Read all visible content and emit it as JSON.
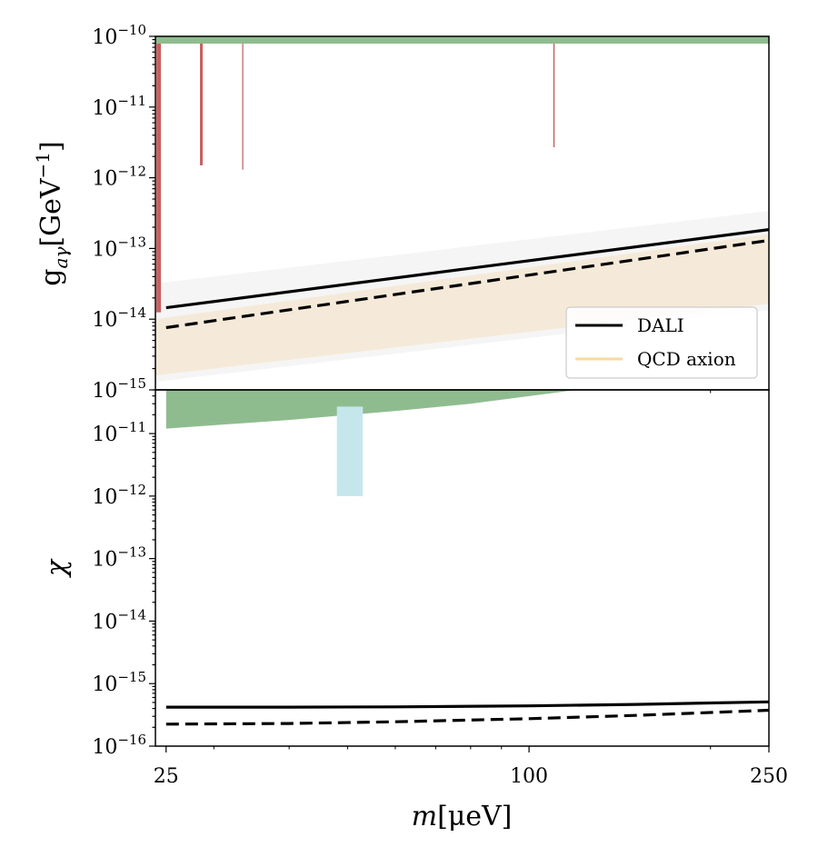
{
  "chart_data": [
    {
      "type": "line",
      "panel": "top",
      "ylabel_main": "g",
      "ylabel_sub": "aγ",
      "ylabel_unit_open": "[GeV",
      "ylabel_unit_exp": "−1",
      "ylabel_unit_close": "]",
      "xscale": "log",
      "yscale": "log",
      "xlim": [
        24,
        250
      ],
      "ylim": [
        1e-15,
        1e-10
      ],
      "yticks": [
        {
          "value": 1e-10,
          "base": "10",
          "exp": "−10"
        },
        {
          "value": 1e-11,
          "base": "10",
          "exp": "−11"
        },
        {
          "value": 1e-12,
          "base": "10",
          "exp": "−12"
        },
        {
          "value": 1e-13,
          "base": "10",
          "exp": "−13"
        },
        {
          "value": 1e-14,
          "base": "10",
          "exp": "−14"
        },
        {
          "value": 1e-15,
          "base": "10",
          "exp": "−15"
        }
      ],
      "series": [
        {
          "name": "DALI",
          "style": "solid",
          "color": "#000000",
          "x": [
            25,
            250
          ],
          "y": [
            1.45e-14,
            1.85e-13
          ]
        },
        {
          "name": "DALI (dashed)",
          "style": "dashed",
          "color": "#000000",
          "x": [
            25,
            250
          ],
          "y": [
            7.6e-15,
            1.3e-13
          ]
        }
      ],
      "bands": [
        {
          "name": "QCD axion band (outer)",
          "color": "#f5f5f5",
          "x": [
            24,
            250
          ],
          "lower": [
            1.3e-15,
            1.35e-14
          ],
          "upper": [
            3.2e-14,
            3.4e-13
          ]
        },
        {
          "name": "QCD axion",
          "color": "#f5ead9",
          "x": [
            24,
            250
          ],
          "lower": [
            1.6e-15,
            1.65e-14
          ],
          "upper": [
            1e-14,
            1.6e-13
          ]
        },
        {
          "name": "top exclusion",
          "color": "#8fbc8f",
          "x": [
            24,
            250
          ],
          "lower": [
            7.9e-11,
            7.9e-11
          ],
          "upper": [
            1e-10,
            1e-10
          ]
        }
      ],
      "exclusion_lines": [
        {
          "x": 24.3,
          "y_low": 1.25e-14,
          "y_high": 7.9e-11,
          "color": "#c96060",
          "width": "wide"
        },
        {
          "x": 28.6,
          "y_low": 1.5e-12,
          "y_high": 7.9e-11,
          "color": "#c96060",
          "width": "medium"
        },
        {
          "x": 33.5,
          "y_low": 1.3e-12,
          "y_high": 7.9e-11,
          "color": "#b04040",
          "width": "thin"
        },
        {
          "x": 110,
          "y_low": 2.7e-12,
          "y_high": 7.9e-11,
          "color": "#b04040",
          "width": "thin"
        }
      ],
      "legend": {
        "position": "bottom-right",
        "entries": [
          {
            "label": "DALI",
            "color": "#000000"
          },
          {
            "label": "QCD axion",
            "color": "#fbd99b"
          }
        ]
      }
    },
    {
      "type": "line",
      "panel": "bottom",
      "ylabel": "χ",
      "xlabel_main": "m",
      "xlabel_unit": "[μeV]",
      "xscale": "log",
      "yscale": "log",
      "xlim": [
        24,
        250
      ],
      "ylim": [
        1e-16,
        5e-11
      ],
      "xticks": [
        {
          "value": 25,
          "label": "25"
        },
        {
          "value": 100,
          "label": "100"
        },
        {
          "value": 250,
          "label": "250"
        }
      ],
      "yticks": [
        {
          "value": 1e-11,
          "base": "10",
          "exp": "−11"
        },
        {
          "value": 1e-12,
          "base": "10",
          "exp": "−12"
        },
        {
          "value": 1e-13,
          "base": "10",
          "exp": "−13"
        },
        {
          "value": 1e-14,
          "base": "10",
          "exp": "−14"
        },
        {
          "value": 1e-15,
          "base": "10",
          "exp": "−15"
        },
        {
          "value": 1e-16,
          "base": "10",
          "exp": "−16"
        }
      ],
      "series": [
        {
          "name": "DALI",
          "style": "solid",
          "color": "#000000",
          "x": [
            25,
            40,
            60,
            100,
            150,
            250
          ],
          "y": [
            4.2e-16,
            4.2e-16,
            4.25e-16,
            4.4e-16,
            4.65e-16,
            5.1e-16
          ]
        },
        {
          "name": "DALI (dashed)",
          "style": "dashed",
          "color": "#000000",
          "x": [
            25,
            40,
            60,
            100,
            150,
            250
          ],
          "y": [
            2.25e-16,
            2.3e-16,
            2.45e-16,
            2.75e-16,
            3.1e-16,
            3.75e-16
          ]
        }
      ],
      "bands": [
        {
          "name": "green exclusion",
          "color": "#8fbc8f",
          "x": [
            25,
            40,
            60,
            80,
            120
          ],
          "lower": [
            1.2e-11,
            1.65e-11,
            2.3e-11,
            3e-11,
            5e-11
          ],
          "upper": [
            5e-11,
            5e-11,
            5e-11,
            5e-11,
            5e-11
          ]
        },
        {
          "name": "cyan exclusion",
          "color": "#c5e7ec",
          "x_range": [
            48,
            53
          ],
          "y_range": [
            1e-12,
            2.7e-11
          ]
        }
      ]
    }
  ]
}
